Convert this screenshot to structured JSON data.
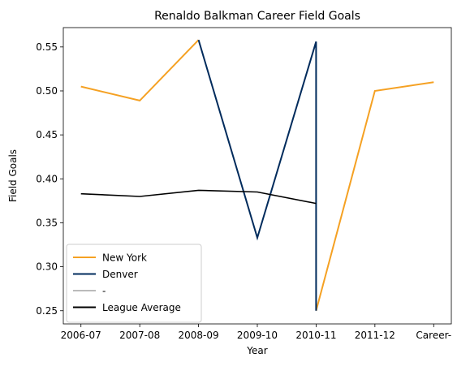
{
  "chart_data": {
    "type": "line",
    "title": "Renaldo Balkman Career Field Goals",
    "xlabel": "Year",
    "ylabel": "Field Goals",
    "categories": [
      "2006-07",
      "2007-08",
      "2008-09",
      "2009-10",
      "2010-11",
      "2011-12",
      "Career-"
    ],
    "ylim": [
      0.235,
      0.572
    ],
    "yticks": [
      0.25,
      0.3,
      0.35,
      0.4,
      0.45,
      0.5,
      0.55
    ],
    "ytick_labels": [
      "0.25",
      "0.30",
      "0.35",
      "0.40",
      "0.45",
      "0.50",
      "0.55"
    ],
    "grid": false,
    "legend_position": "lower-left",
    "series": [
      {
        "name": "New York",
        "color": "#f5a123",
        "width": 2,
        "points": [
          [
            0,
            0.505
          ],
          [
            1,
            0.489
          ],
          [
            2,
            0.558
          ]
        ]
      },
      {
        "name": "New York",
        "color": "#f5a123",
        "width": 2,
        "legend": false,
        "points": [
          [
            4,
            0.25
          ],
          [
            5,
            0.5
          ],
          [
            6,
            0.51
          ]
        ]
      },
      {
        "name": "Denver",
        "color": "#002b5c",
        "width": 2,
        "points": [
          [
            2,
            0.558
          ],
          [
            3,
            0.333
          ],
          [
            4,
            0.556
          ],
          [
            4,
            0.25
          ]
        ]
      },
      {
        "name": "-",
        "color": "#bbbbbb",
        "width": 2,
        "points": []
      },
      {
        "name": "League Average",
        "color": "#000000",
        "width": 1.6,
        "points": [
          [
            0,
            0.383
          ],
          [
            1,
            0.38
          ],
          [
            2,
            0.387
          ],
          [
            3,
            0.385
          ],
          [
            4,
            0.372
          ]
        ]
      }
    ]
  }
}
